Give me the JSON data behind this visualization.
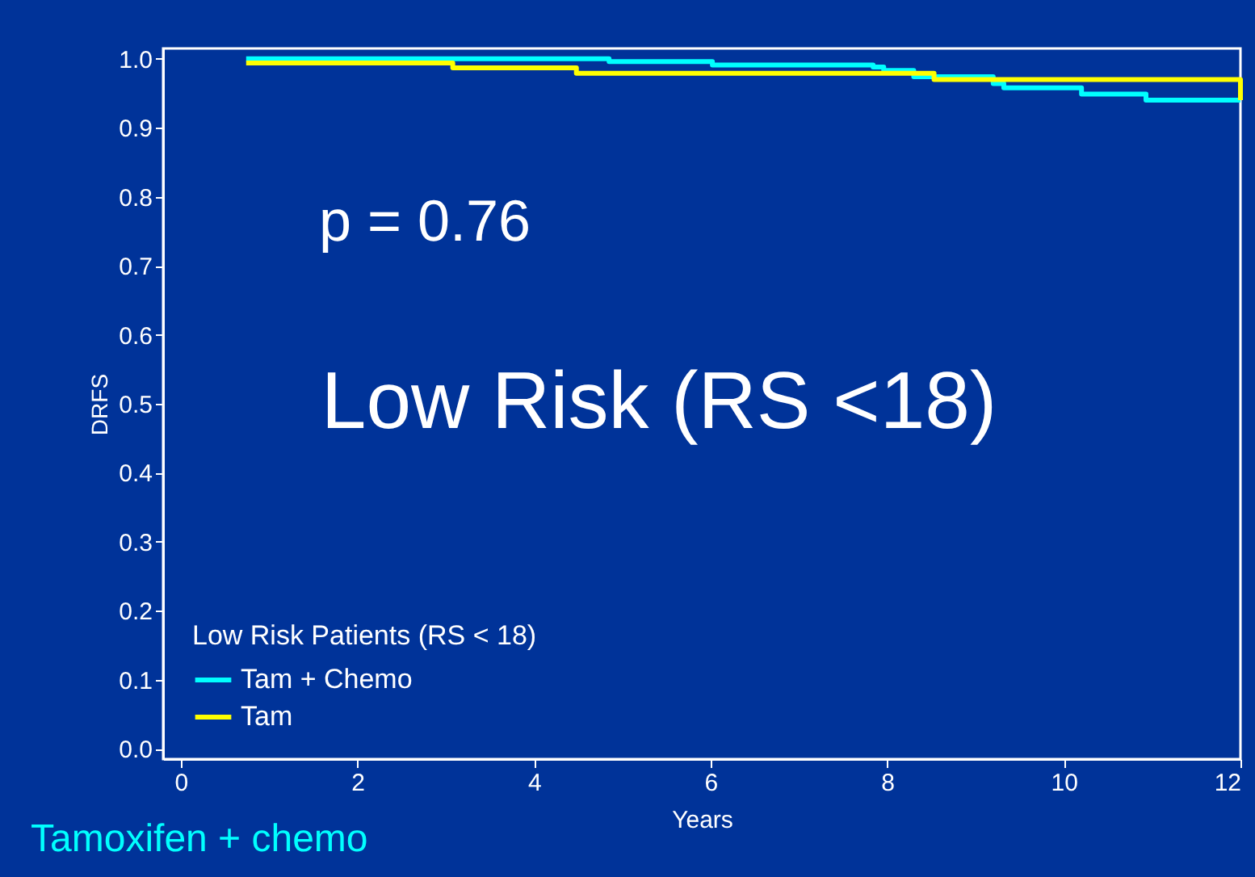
{
  "chart_data": {
    "type": "step",
    "xlabel": "Years",
    "ylabel": "DRFS",
    "legend_title": "Low Risk Patients (RS < 18)",
    "annotations": [
      "p = 0.76",
      "Low Risk (RS <18)",
      "Tamoxifen + chemo"
    ],
    "series": [
      {
        "name": "Tam + Chemo",
        "color": "#00ffff",
        "x": [
          0.74,
          4.85,
          6.02,
          7.84,
          7.96,
          8.3,
          9.2,
          9.32,
          10.2,
          10.93,
          12
        ],
        "values": [
          1.0,
          0.996,
          0.991,
          0.988,
          0.983,
          0.974,
          0.964,
          0.958,
          0.949,
          0.94,
          0.94
        ]
      },
      {
        "name": "Tam",
        "color": "#ffff00",
        "x": [
          0.74,
          3.08,
          4.48,
          8.53,
          12,
          12
        ],
        "values": [
          0.994,
          0.987,
          0.979,
          0.97,
          0.97,
          0.94
        ]
      }
    ],
    "xlim": [
      -0.2,
      12
    ],
    "ylim": [
      -0.015,
      1.015
    ],
    "xticks": [
      0,
      2,
      4,
      6,
      8,
      10,
      12
    ],
    "yticks": [
      {
        "value": 0,
        "label": "0.0"
      },
      0.1,
      0.2,
      0.3,
      0.4,
      0.5,
      0.6,
      0.7,
      0.8,
      0.9,
      {
        "value": 1,
        "label": "1.0"
      }
    ],
    "legend": "bottom left"
  }
}
